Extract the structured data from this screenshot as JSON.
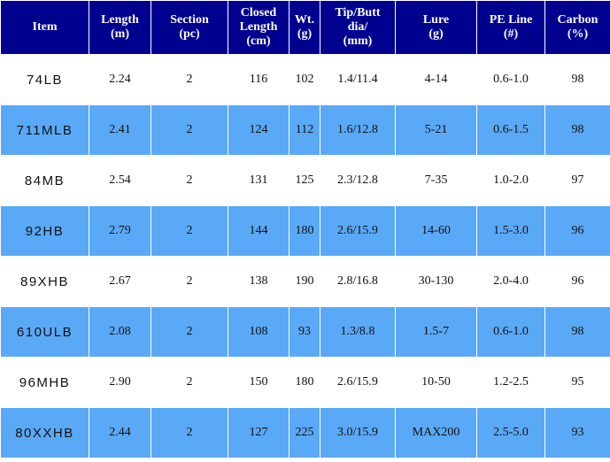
{
  "table": {
    "header": [
      "Item",
      "Length\n(m)",
      "Section\n(pc)",
      "Closed\nLength\n(cm)",
      "Wt.\n(g)",
      "Tip/Butt\ndia/\n(mm)",
      "Lure\n(g)",
      "PE Line\n(#)",
      "Carbon\n(%)"
    ],
    "rows": [
      [
        "74LB",
        "2.24",
        "2",
        "116",
        "102",
        "1.4/11.4",
        "4-14",
        "0.6-1.0",
        "98"
      ],
      [
        "711MLB",
        "2.41",
        "2",
        "124",
        "112",
        "1.6/12.8",
        "5-21",
        "0.6-1.5",
        "98"
      ],
      [
        "84MB",
        "2.54",
        "2",
        "131",
        "125",
        "2.3/12.8",
        "7-35",
        "1.0-2.0",
        "97"
      ],
      [
        "92HB",
        "2.79",
        "2",
        "144",
        "180",
        "2.6/15.9",
        "14-60",
        "1.5-3.0",
        "96"
      ],
      [
        "89XHB",
        "2.67",
        "2",
        "138",
        "190",
        "2.8/16.8",
        "30-130",
        "2.0-4.0",
        "96"
      ],
      [
        "610ULB",
        "2.08",
        "2",
        "108",
        "93",
        "1.3/8.8",
        "1.5-7",
        "0.6-1.0",
        "98"
      ],
      [
        "96MHB",
        "2.90",
        "2",
        "150",
        "180",
        "2.6/15.9",
        "10-50",
        "1.2-2.5",
        "95"
      ],
      [
        "80XXHB",
        "2.44",
        "2",
        "127",
        "225",
        "3.0/15.9",
        "MAX200",
        "2.5-5.0",
        "93"
      ]
    ]
  }
}
